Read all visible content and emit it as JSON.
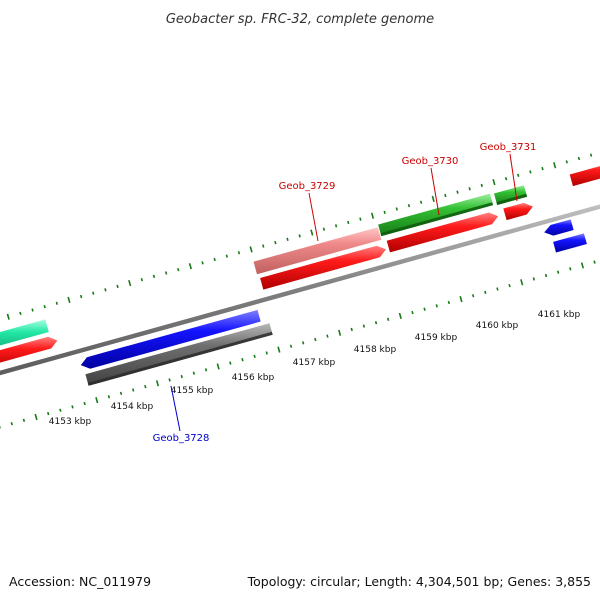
{
  "title": "Geobacter sp. FRC-32, complete genome",
  "footer": {
    "accession": "Accession: NC_011979",
    "stats": "Topology: circular; Length: 4,304,501 bp; Genes: 3,855"
  },
  "colors": {
    "red": "#ff0000",
    "green": "#2fb52f",
    "teal": "#22e0a0",
    "blue": "#0000ee",
    "gray": "#666666",
    "pink": "#f08080",
    "tick_green": "#1a7a1a",
    "backbone": "#8a8a8a",
    "label_red": "#cc0000",
    "label_blue": "#0000cc"
  },
  "scale": {
    "unit": "kbp",
    "labels": [
      "4153 kbp",
      "4154 kbp",
      "4155 kbp",
      "4156 kbp",
      "4157 kbp",
      "4158 kbp",
      "4159 kbp",
      "4160 kbp",
      "4161 kbp"
    ]
  },
  "genes": [
    {
      "label": "Geob_3728",
      "color": "blue"
    },
    {
      "label": "Geob_3729",
      "color": "red"
    },
    {
      "label": "Geob_3730",
      "color": "red"
    },
    {
      "label": "Geob_3731",
      "color": "red"
    }
  ],
  "features": [
    {
      "strand": "+",
      "kind": "CDS",
      "color": "teal"
    },
    {
      "strand": "+",
      "kind": "CDS",
      "color": "red"
    },
    {
      "strand": "-",
      "kind": "CDS",
      "color": "blue"
    },
    {
      "strand": "-",
      "kind": "gene",
      "color": "gray"
    },
    {
      "strand": "+",
      "kind": "gene",
      "color": "pink"
    },
    {
      "strand": "+",
      "kind": "CDS",
      "color": "red"
    },
    {
      "strand": "+",
      "kind": "gene",
      "color": "green"
    },
    {
      "strand": "+",
      "kind": "CDS",
      "color": "red"
    },
    {
      "strand": "+",
      "kind": "gene",
      "color": "green"
    },
    {
      "strand": "+",
      "kind": "CDS",
      "color": "red"
    },
    {
      "strand": "-",
      "kind": "CDS",
      "color": "blue"
    },
    {
      "strand": "-",
      "kind": "gene",
      "color": "blue"
    },
    {
      "strand": "+",
      "kind": "CDS",
      "color": "red"
    }
  ]
}
